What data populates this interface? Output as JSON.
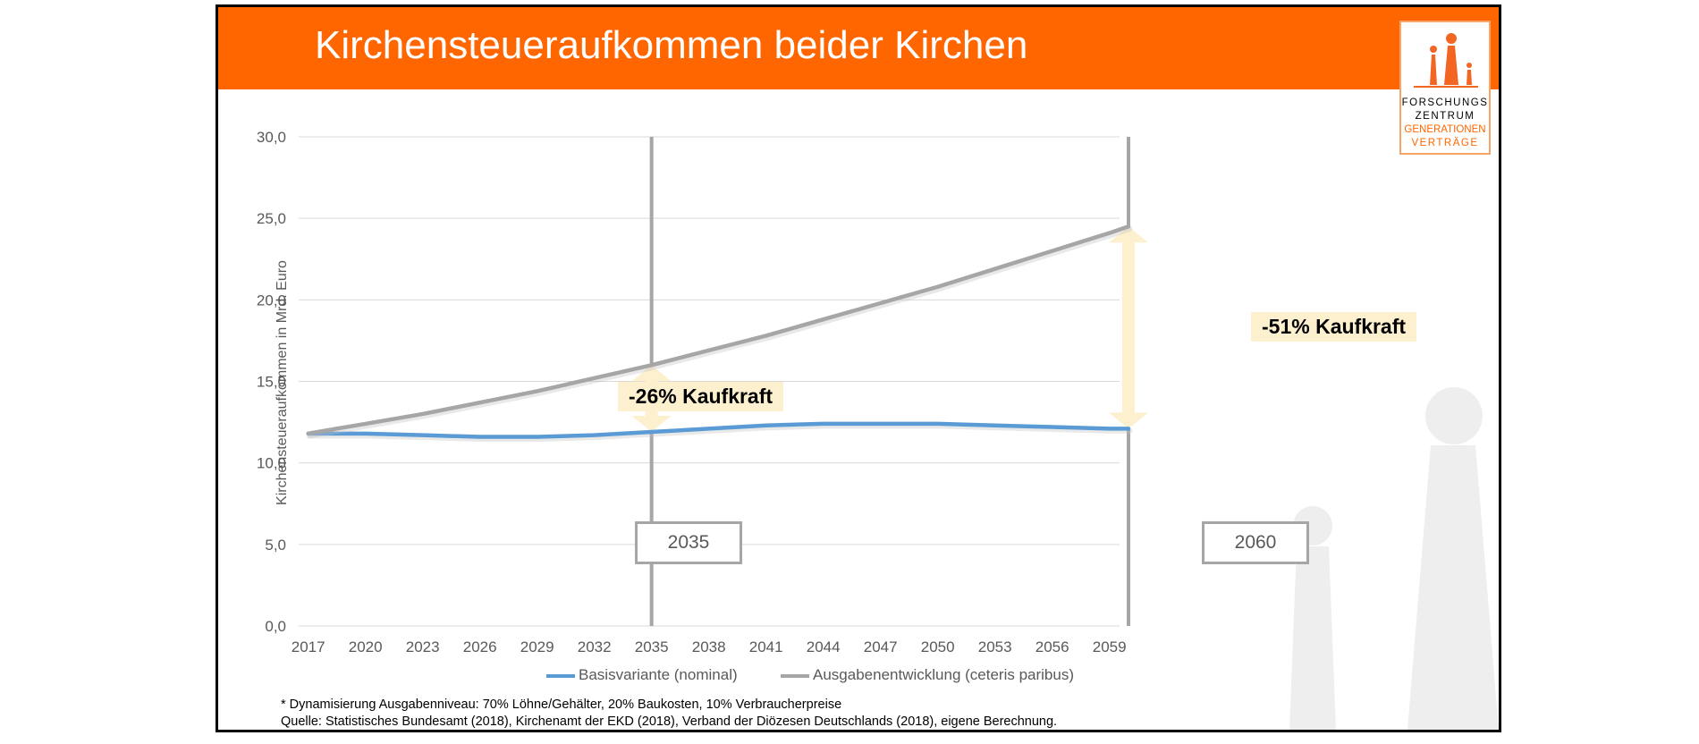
{
  "title": "Kirchensteueraufkommen beider Kirchen",
  "logo": {
    "lines": [
      "FORSCHUNGS",
      "ZENTRUM",
      "GENERATIONEN",
      "VERTRÄGE"
    ],
    "colors": [
      "#404040",
      "#404040",
      "#ff6600",
      "#ff6600"
    ],
    "accent": "#f26522"
  },
  "colors": {
    "title_bar": "#ff6600",
    "series_base": "#5b9bd5",
    "series_exp": "#a6a6a6",
    "annotation_bg": "#fdf0cf",
    "arrow": "#fdf0cf"
  },
  "chart_data": {
    "type": "line",
    "ylabel": "Kirchensteueraufkommen in Mrd. Euro",
    "xlabel": "",
    "ylim": [
      0,
      30
    ],
    "y_ticks": [
      "0,0",
      "5,0",
      "10,0",
      "15,0",
      "20,0",
      "25,0",
      "30,0"
    ],
    "x": [
      2017,
      2020,
      2023,
      2026,
      2029,
      2032,
      2035,
      2038,
      2041,
      2044,
      2047,
      2050,
      2053,
      2056,
      2059,
      2060
    ],
    "x_ticks": [
      "2017",
      "2020",
      "2023",
      "2026",
      "2029",
      "2032",
      "2035",
      "2038",
      "2041",
      "2044",
      "2047",
      "2050",
      "2053",
      "2056",
      "2059"
    ],
    "grid": true,
    "legend_position": "bottom",
    "series": [
      {
        "name": "Basisvariante (nominal)",
        "values": [
          11.8,
          11.8,
          11.7,
          11.6,
          11.6,
          11.7,
          11.9,
          12.1,
          12.3,
          12.4,
          12.4,
          12.4,
          12.3,
          12.2,
          12.1,
          12.1
        ]
      },
      {
        "name": "Ausgabenentwicklung (ceteris paribus)",
        "values": [
          11.8,
          12.4,
          13.0,
          13.7,
          14.4,
          15.2,
          16.0,
          16.9,
          17.8,
          18.8,
          19.8,
          20.8,
          21.9,
          23.0,
          24.1,
          24.5
        ]
      }
    ],
    "markers": [
      {
        "year": 2035,
        "label": "2035",
        "annotation": "-26% Kaufkraft"
      },
      {
        "year": 2060,
        "label": "2060",
        "annotation": "-51% Kaufkraft"
      }
    ]
  },
  "notes": [
    "* Dynamisierung Ausgabenniveau: 70% Löhne/Gehälter, 20% Baukosten, 10% Verbraucherpreise",
    "Quelle: Statistisches Bundesamt (2018), Kirchenamt der EKD (2018), Verband der Diözesen Deutschlands (2018), eigene Berechnung."
  ]
}
